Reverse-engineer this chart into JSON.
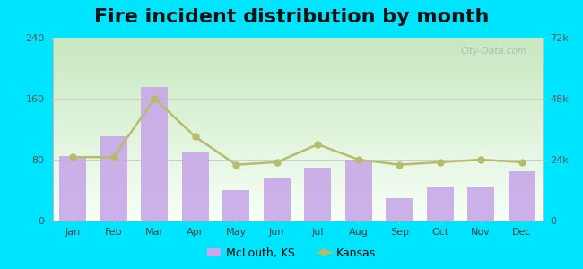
{
  "title": "Fire incident distribution by month",
  "months": [
    "Jan",
    "Feb",
    "Mar",
    "Apr",
    "May",
    "Jun",
    "Jul",
    "Aug",
    "Sep",
    "Oct",
    "Nov",
    "Dec"
  ],
  "bar_values": [
    85,
    110,
    175,
    90,
    40,
    55,
    70,
    80,
    30,
    45,
    45,
    65
  ],
  "line_values": [
    25000,
    25000,
    48000,
    33000,
    22000,
    23000,
    30000,
    24000,
    22000,
    23000,
    24000,
    23000
  ],
  "bar_color": "#c8a8e8",
  "line_color": "#b8bb6a",
  "left_ylim": [
    0,
    240
  ],
  "right_ylim": [
    0,
    72000
  ],
  "left_yticks": [
    0,
    80,
    160,
    240
  ],
  "right_yticks": [
    0,
    24000,
    48000,
    72000
  ],
  "right_yticklabels": [
    "0",
    "24k",
    "48k",
    "72k"
  ],
  "outer_background": "#00e5ff",
  "title_fontsize": 16,
  "legend_mclouth": "McLouth, KS",
  "legend_kansas": "Kansas",
  "watermark": "City-Data.com",
  "bg_colors": [
    "#c8e8c0",
    "#e8f5e8",
    "#f5fffb"
  ],
  "grid_color": "#cccccc"
}
